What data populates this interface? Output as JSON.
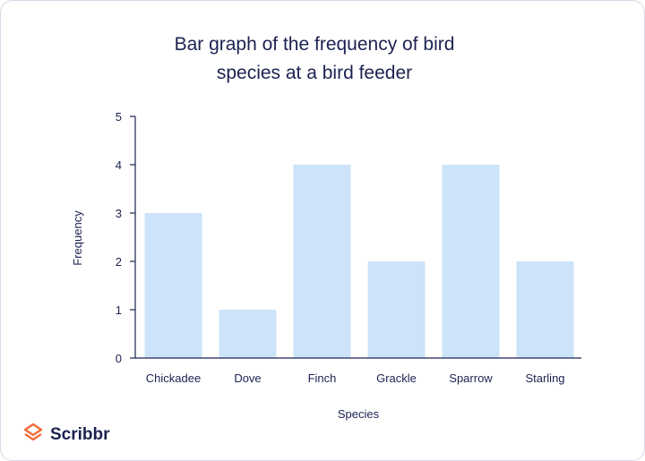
{
  "brand": {
    "name": "Scribbr",
    "accent_color": "#f26b3a"
  },
  "chart_data": {
    "type": "bar",
    "title_lines": [
      "Bar graph of the frequency of bird",
      "species at a bird feeder"
    ],
    "xlabel": "Species",
    "ylabel": "Frequency",
    "categories": [
      "Chickadee",
      "Dove",
      "Finch",
      "Grackle",
      "Sparrow",
      "Starling"
    ],
    "values": [
      3,
      1,
      4,
      2,
      4,
      2
    ],
    "ylim": [
      0,
      5
    ],
    "yticks": [
      0,
      1,
      2,
      3,
      4,
      5
    ],
    "grid": false,
    "bar_color": "#cce3fa",
    "axis_color": "#1b2250"
  }
}
